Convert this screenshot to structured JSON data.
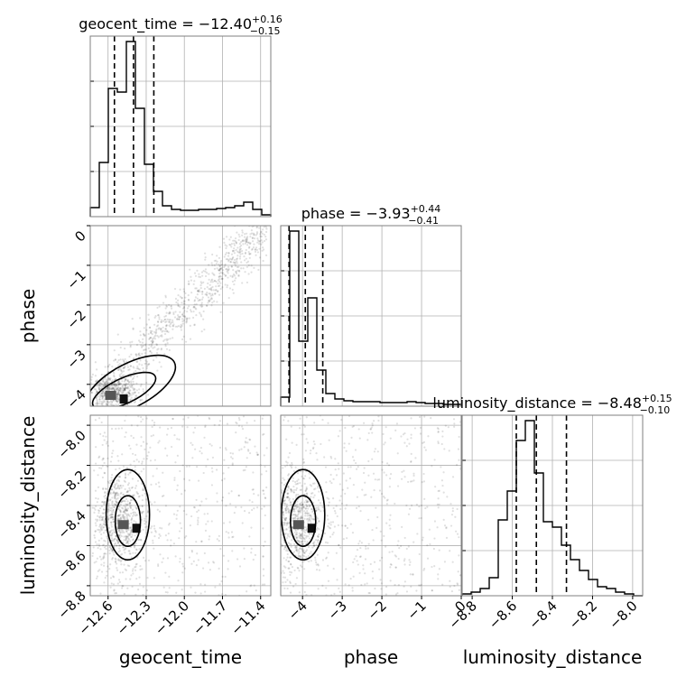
{
  "chart_data": {
    "type": "corner",
    "parameters": [
      {
        "name": "geocent_time",
        "axis_label": "geocent_time",
        "title": {
          "prefix": "geocent_time = ",
          "value": "−12.40",
          "plus": "+0.16",
          "minus": "−0.15"
        },
        "range": [
          -12.74,
          -11.32
        ],
        "ticks": [
          -12.6,
          -12.3,
          -12.0,
          -11.7,
          -11.4
        ],
        "tick_labels": [
          "−12.6",
          "−12.3",
          "−12.0",
          "−11.7",
          "−11.4"
        ],
        "quantiles": [
          -12.55,
          -12.4,
          -12.24
        ],
        "hist": [
          0.05,
          0.3,
          0.71,
          0.69,
          0.97,
          0.6,
          0.29,
          0.14,
          0.06,
          0.04,
          0.035,
          0.035,
          0.04,
          0.04,
          0.045,
          0.05,
          0.06,
          0.08,
          0.04,
          0.01
        ]
      },
      {
        "name": "phase",
        "axis_label": "phase",
        "title": {
          "prefix": "phase = ",
          "value": "−3.93",
          "plus": "+0.44",
          "minus": "−0.41"
        },
        "range": [
          -4.55,
          0.0
        ],
        "ticks": [
          -4,
          -3,
          -2,
          -1,
          0
        ],
        "tick_labels": [
          "−4",
          "−3",
          "−2",
          "−1",
          "0"
        ],
        "quantiles": [
          -4.34,
          -3.93,
          -3.49
        ],
        "hist": [
          0.05,
          0.97,
          0.36,
          0.6,
          0.2,
          0.07,
          0.04,
          0.03,
          0.025,
          0.025,
          0.025,
          0.02,
          0.02,
          0.02,
          0.025,
          0.02,
          0.015,
          0.015,
          0.01,
          0.01
        ]
      },
      {
        "name": "luminosity_distance",
        "axis_label": "luminosity_distance",
        "title": {
          "prefix": "luminosity_distance = ",
          "value": "−8.48",
          "plus": "+0.15",
          "minus": "−0.10"
        },
        "range": [
          -8.85,
          -7.95
        ],
        "ticks": [
          -8.8,
          -8.6,
          -8.4,
          -8.2,
          -8.0
        ],
        "tick_labels": [
          "−8.8",
          "−8.6",
          "−8.4",
          "−8.2",
          "−8.0"
        ],
        "quantiles": [
          -8.58,
          -8.48,
          -8.33
        ],
        "hist": [
          0.01,
          0.02,
          0.04,
          0.1,
          0.42,
          0.58,
          0.86,
          0.97,
          0.68,
          0.41,
          0.38,
          0.28,
          0.2,
          0.14,
          0.09,
          0.05,
          0.04,
          0.02,
          0.01,
          0.0
        ]
      }
    ],
    "y_ticks": {
      "phase": [
        -4,
        -3,
        -2,
        -1,
        0
      ],
      "luminosity_distance": [
        -8.8,
        -8.6,
        -8.4,
        -8.2,
        -8.0
      ]
    },
    "grid": true,
    "colors": {
      "line": "#000000",
      "grid": "#b0b0b0",
      "points": "#000000"
    }
  }
}
